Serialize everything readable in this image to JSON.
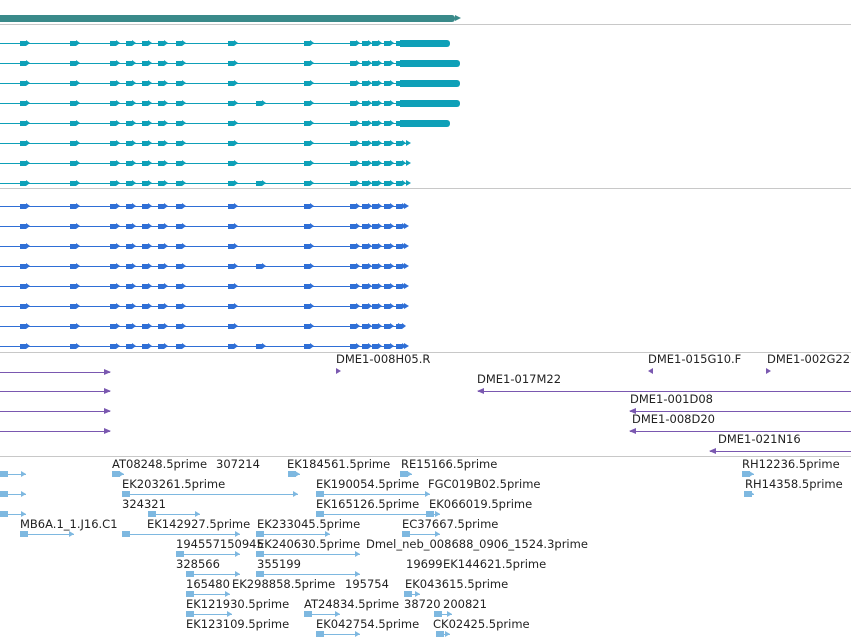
{
  "colors": {
    "top_bar": "#3a8a8a",
    "track_line": "#c8c8c8",
    "teal_transcripts": "#0ea0b8",
    "blue_transcripts": "#2f6fd6",
    "clones": "#7a58b0",
    "ests": "#7eb8e0",
    "label_text": "#222222"
  },
  "clone_labels": [
    {
      "text": "DME1-008H05.R"
    },
    {
      "text": "DME1-015G10.F"
    },
    {
      "text": "DME1-002G22"
    },
    {
      "text": "DME1-017M22"
    },
    {
      "text": "DME1-001D08"
    },
    {
      "text": "DME1-008D20"
    },
    {
      "text": "DME1-021N16"
    }
  ],
  "est_labels": [
    {
      "text": "AT08248.5prime"
    },
    {
      "text": "307214"
    },
    {
      "text": "EK184561.5prime"
    },
    {
      "text": "RE15166.5prime"
    },
    {
      "text": "RH12236.5prime"
    },
    {
      "text": "EK203261.5prime"
    },
    {
      "text": "EK190054.5prime"
    },
    {
      "text": "FGC019B02.5prime"
    },
    {
      "text": "RH14358.5prime"
    },
    {
      "text": "324321"
    },
    {
      "text": "EK165126.5prime"
    },
    {
      "text": "EK066019.5prime"
    },
    {
      "text": "MB6A.1_1.J16.C1"
    },
    {
      "text": "EK142927.5prime"
    },
    {
      "text": "EK233045.5prime"
    },
    {
      "text": "EC37667.5prime"
    },
    {
      "text": "194557150945"
    },
    {
      "text": "EK240630.5prime"
    },
    {
      "text": "Dmel_neb_008688_0906_1524.3prime"
    },
    {
      "text": "328566"
    },
    {
      "text": "355199"
    },
    {
      "text": "19699"
    },
    {
      "text": "EK144621.5prime"
    },
    {
      "text": "165480"
    },
    {
      "text": "EK298858.5prime"
    },
    {
      "text": "195754"
    },
    {
      "text": "EK043615.5prime"
    },
    {
      "text": "EK121930.5prime"
    },
    {
      "text": "AT24834.5prime"
    },
    {
      "text": "38720"
    },
    {
      "text": "200821"
    },
    {
      "text": "EK123109.5prime"
    },
    {
      "text": "EK042754.5prime"
    },
    {
      "text": "CK02425.5prime"
    }
  ]
}
